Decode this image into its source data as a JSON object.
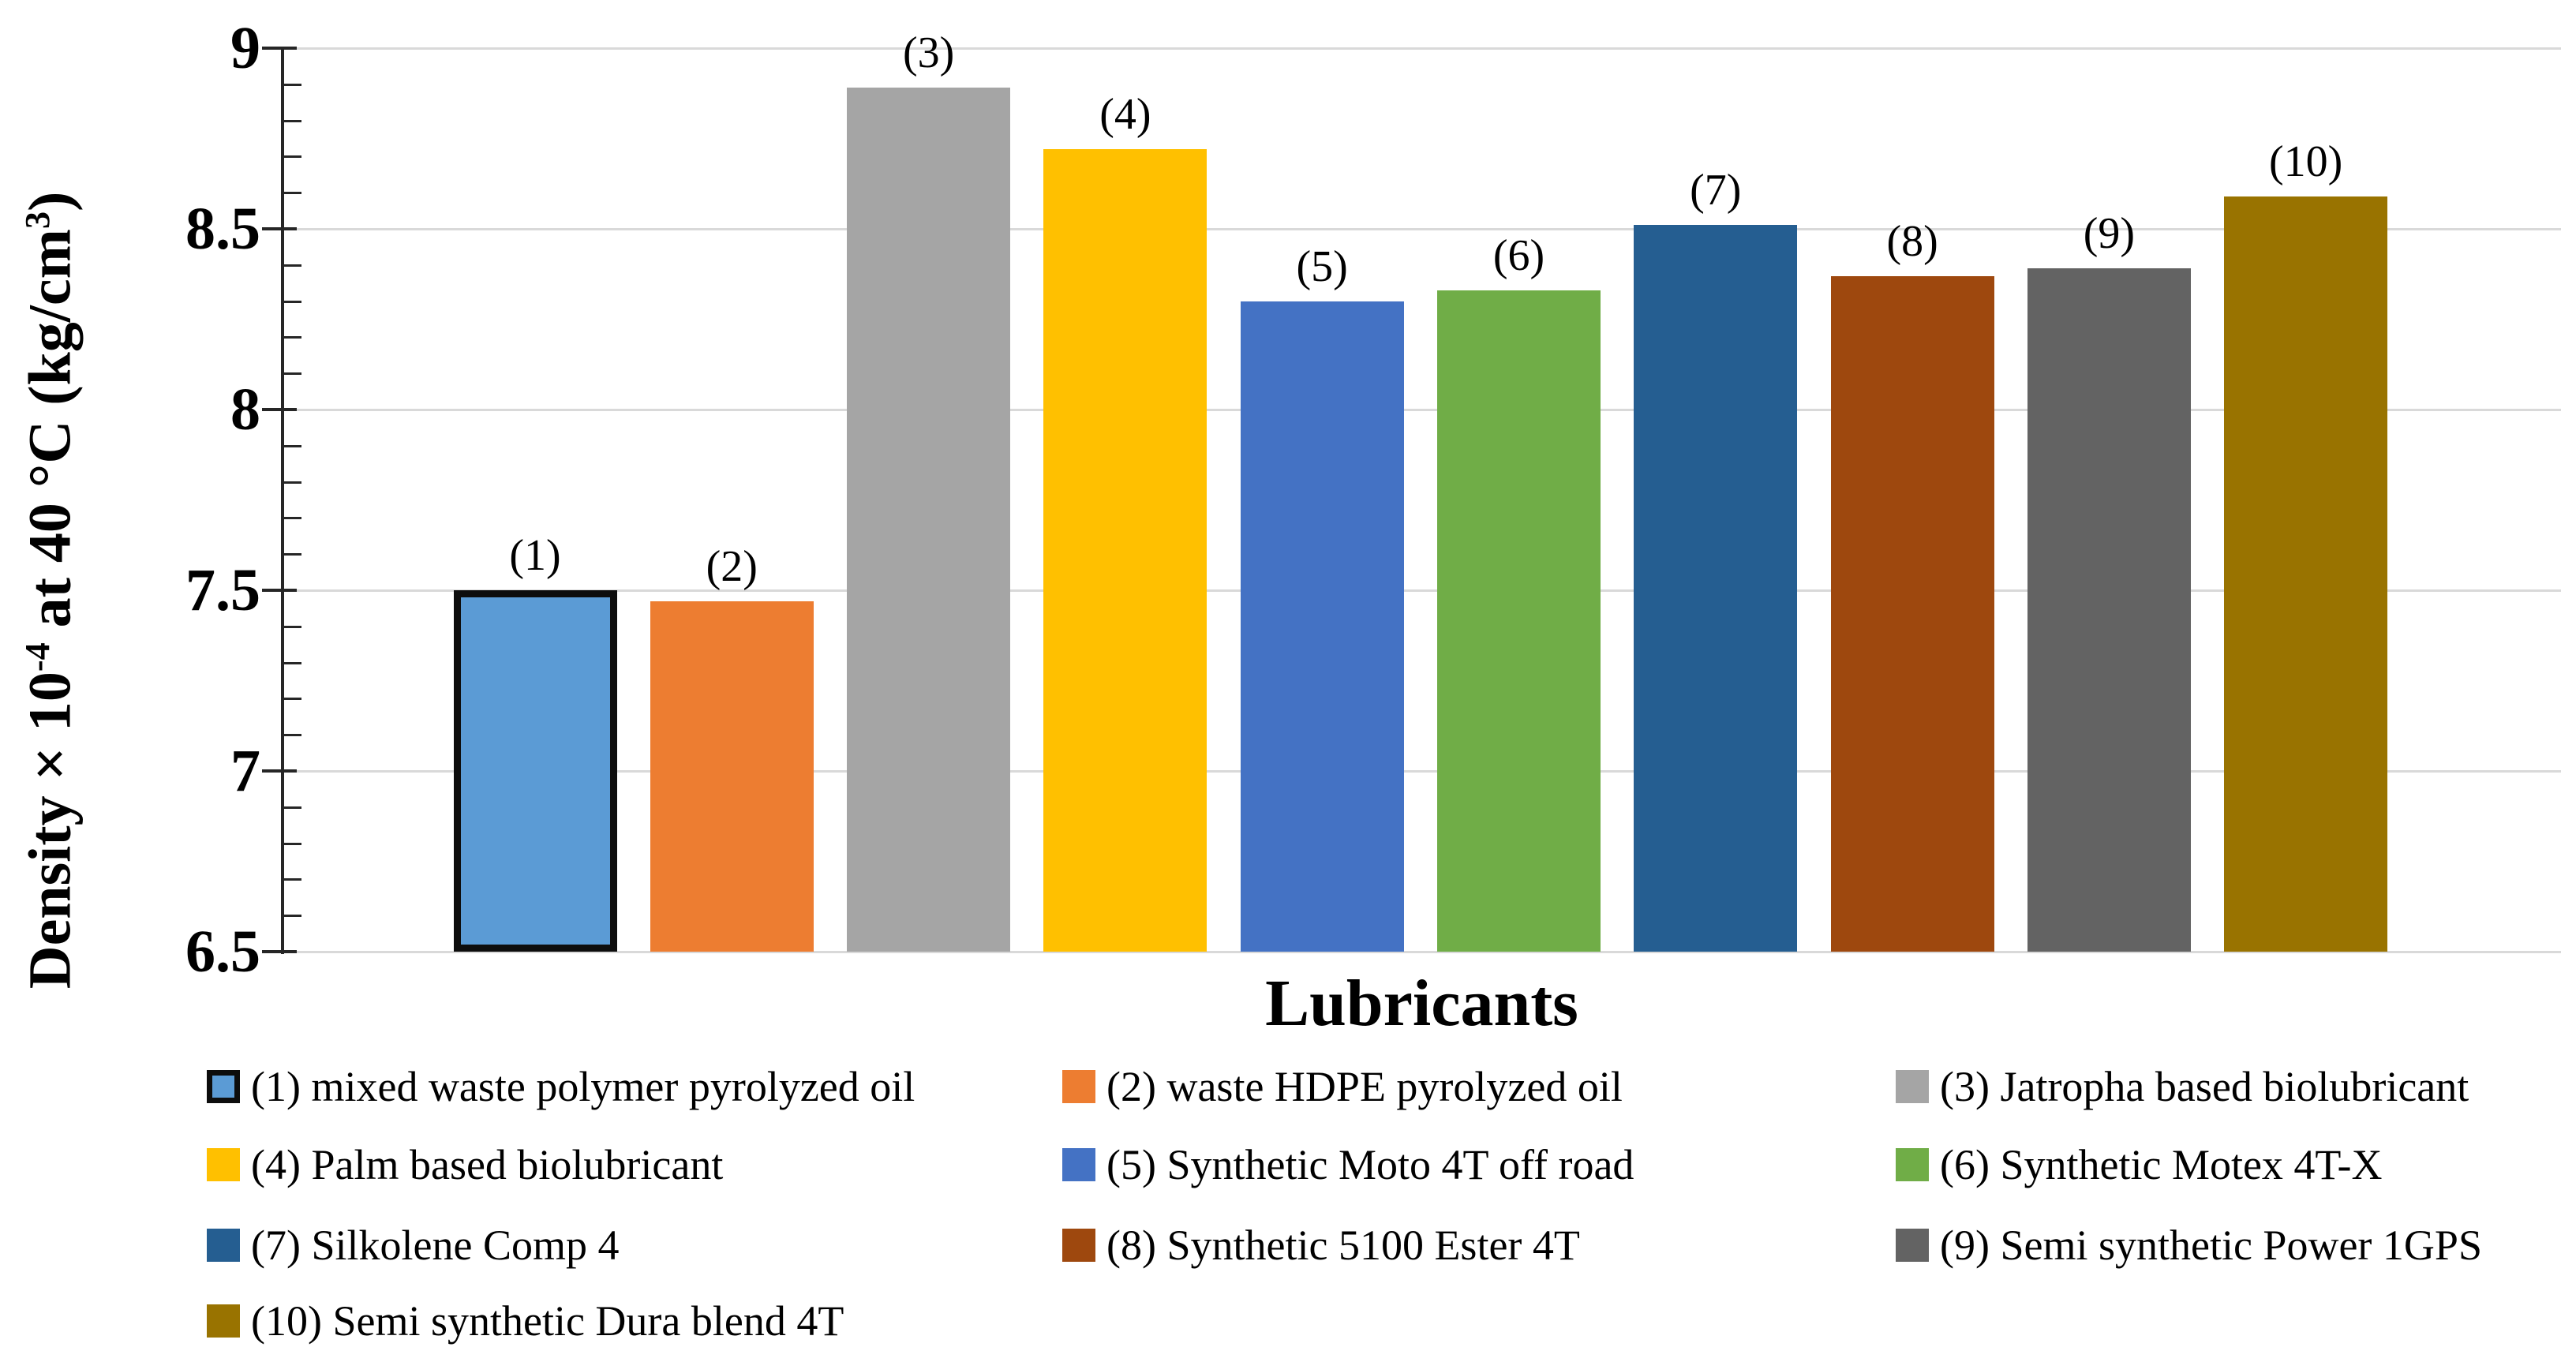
{
  "page": {
    "background": "#FFFFFF"
  },
  "chart_data": {
    "type": "bar",
    "title": "",
    "xlabel": "Lubricants",
    "ylabel": "Density × 10⁻⁴ at 40 °C (kg/cm³)",
    "ylabel_parts": {
      "base1": "Density × 10",
      "sup1": "-4",
      "base2": " at 40 °C (kg/cm",
      "sup2": "3",
      "base3": ")"
    },
    "categories": [
      "(1)",
      "(2)",
      "(3)",
      "(4)",
      "(5)",
      "(6)",
      "(7)",
      "(8)",
      "(9)",
      "(10)"
    ],
    "values": [
      7.5,
      7.47,
      8.89,
      8.72,
      8.3,
      8.33,
      8.51,
      8.37,
      8.39,
      8.59
    ],
    "series": [
      {
        "name": "Density × 10⁻⁴ at 40 °C (kg/cm³)",
        "values": [
          7.5,
          7.47,
          8.89,
          8.72,
          8.3,
          8.33,
          8.51,
          8.37,
          8.39,
          8.59
        ]
      }
    ],
    "bar_colors": [
      "#5B9BD5",
      "#ED7D31",
      "#A5A5A5",
      "#FFC000",
      "#4472C4",
      "#70AD47",
      "#255E91",
      "#9E480E",
      "#636363",
      "#997300"
    ],
    "bar_border_colors": [
      "#0D0D0D",
      null,
      null,
      null,
      null,
      null,
      null,
      null,
      null,
      null
    ],
    "ylim": [
      6.5,
      9
    ],
    "yticks": [
      6.5,
      7,
      7.5,
      8,
      8.5,
      9
    ],
    "ytick_labels": [
      "6.5",
      "7",
      "7.5",
      "8",
      "8.5",
      "9"
    ],
    "minor_tick_step": 0.1,
    "grid": "horizontal major gridlines on",
    "gridline_color": "#D9D9D9",
    "axis_color": "#262626",
    "legend_position": "bottom"
  },
  "legend": {
    "items": [
      {
        "label": "(1) mixed waste polymer pyrolyzed oil",
        "color": "#5B9BD5",
        "border": "#0D0D0D"
      },
      {
        "label": "(2) waste HDPE pyrolyzed oil",
        "color": "#ED7D31",
        "border": null
      },
      {
        "label": "(3) Jatropha based biolubricant",
        "color": "#A5A5A5",
        "border": null
      },
      {
        "label": "(4) Palm based biolubricant",
        "color": "#FFC000",
        "border": null
      },
      {
        "label": "(5) Synthetic Moto 4T off road",
        "color": "#4472C4",
        "border": null
      },
      {
        "label": "(6) Synthetic Motex 4T-X",
        "color": "#70AD47",
        "border": null
      },
      {
        "label": "(7) Silkolene Comp 4",
        "color": "#255E91",
        "border": null
      },
      {
        "label": "(8) Synthetic 5100 Ester 4T",
        "color": "#9E480E",
        "border": null
      },
      {
        "label": "(9) Semi synthetic Power 1GPS",
        "color": "#636363",
        "border": null
      },
      {
        "label": "(10) Semi synthetic Dura blend 4T",
        "color": "#997300",
        "border": null
      }
    ]
  }
}
